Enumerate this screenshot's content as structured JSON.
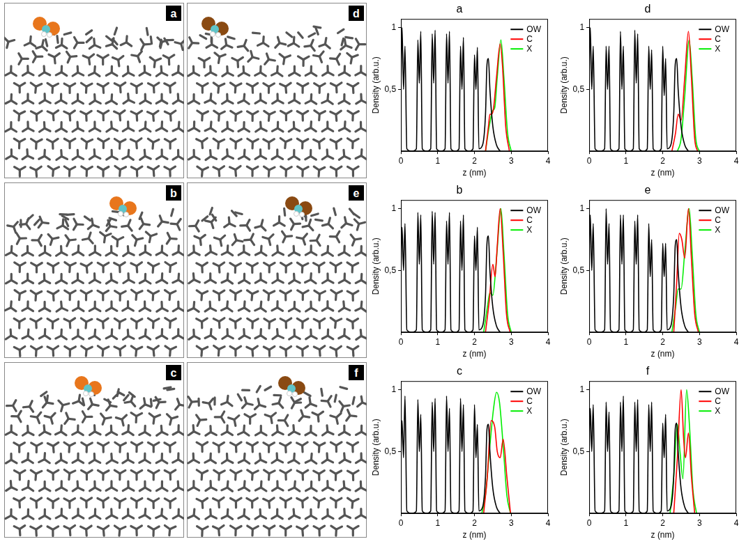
{
  "snapshots": [
    "a",
    "b",
    "c",
    "d",
    "e",
    "f"
  ],
  "chart_data": [
    {
      "type": "line",
      "title": "a",
      "x_label": "z (nm)",
      "y_label": "Density (arb.u.)",
      "xlim": [
        0,
        4
      ],
      "xticks": [
        0,
        1,
        2,
        3,
        4
      ],
      "ylim": [
        0,
        1.07
      ],
      "yticks": [
        {
          "value": 0.5,
          "label": "0,5"
        },
        1
      ],
      "grid": false,
      "legend": "upper right",
      "series": [
        {
          "name": "OW",
          "color": "#000000",
          "x": [
            0,
            0.03,
            0.07,
            0.11,
            0.16,
            0.3,
            0.42,
            0.46,
            0.5,
            0.54,
            0.58,
            0.7,
            0.81,
            0.85,
            0.89,
            0.93,
            0.97,
            1.09,
            1.2,
            1.24,
            1.28,
            1.32,
            1.36,
            1.48,
            1.58,
            1.62,
            1.66,
            1.7,
            1.74,
            1.86,
            1.96,
            2.0,
            2.04,
            2.08,
            2.12,
            2.22,
            2.3,
            2.34,
            2.38,
            2.42,
            2.5,
            2.6,
            2.7
          ],
          "values": [
            0.55,
            1.0,
            0.5,
            0.85,
            0.02,
            0,
            0.02,
            0.9,
            0.55,
            0.97,
            0.02,
            0,
            0.02,
            0.95,
            0.55,
            0.98,
            0.02,
            0,
            0.02,
            0.95,
            0.55,
            0.97,
            0.02,
            0,
            0.02,
            0.85,
            0.5,
            0.92,
            0.02,
            0,
            0.02,
            0.78,
            0.5,
            0.84,
            0.02,
            0.05,
            0.3,
            0.7,
            0.75,
            0.5,
            0.2,
            0.05,
            0
          ]
        },
        {
          "name": "C",
          "color": "#ff0000",
          "x": [
            2.3,
            2.38,
            2.42,
            2.47,
            2.52,
            2.6,
            2.7,
            2.76,
            2.85,
            2.95
          ],
          "values": [
            0,
            0.2,
            0.3,
            0.3,
            0.35,
            0.6,
            0.87,
            0.7,
            0.2,
            0
          ]
        },
        {
          "name": "X",
          "color": "#00ee00",
          "x": [
            2.3,
            2.4,
            2.5,
            2.55,
            2.62,
            2.72,
            2.8,
            2.9,
            3.0
          ],
          "values": [
            0,
            0.2,
            0.33,
            0.35,
            0.6,
            0.9,
            0.6,
            0.15,
            0
          ]
        }
      ]
    },
    {
      "type": "line",
      "title": "b",
      "x_label": "z (nm)",
      "y_label": "Density (arb.u.)",
      "xlim": [
        0,
        4
      ],
      "xticks": [
        0,
        1,
        2,
        3,
        4
      ],
      "ylim": [
        0,
        1.07
      ],
      "yticks": [
        {
          "value": 0.5,
          "label": "0,5"
        },
        1
      ],
      "grid": false,
      "legend": "upper right",
      "series": [
        {
          "name": "OW",
          "color": "#000000",
          "x": [
            0,
            0.03,
            0.07,
            0.11,
            0.16,
            0.3,
            0.42,
            0.46,
            0.5,
            0.54,
            0.58,
            0.7,
            0.81,
            0.85,
            0.89,
            0.93,
            0.97,
            1.09,
            1.2,
            1.24,
            1.28,
            1.32,
            1.36,
            1.48,
            1.58,
            1.62,
            1.66,
            1.7,
            1.74,
            1.86,
            1.96,
            2.0,
            2.04,
            2.08,
            2.12,
            2.22,
            2.3,
            2.34,
            2.38,
            2.42,
            2.5,
            2.6,
            2.7
          ],
          "values": [
            0.5,
            0.85,
            0.5,
            0.88,
            0.02,
            0,
            0.02,
            0.97,
            0.55,
            0.95,
            0.02,
            0,
            0.02,
            0.98,
            0.55,
            0.97,
            0.02,
            0,
            0.02,
            0.9,
            0.55,
            0.97,
            0.02,
            0,
            0.02,
            0.9,
            0.5,
            0.95,
            0.02,
            0,
            0.02,
            0.78,
            0.5,
            0.85,
            0.02,
            0.05,
            0.3,
            0.72,
            0.78,
            0.5,
            0.2,
            0.05,
            0
          ]
        },
        {
          "name": "C",
          "color": "#ff0000",
          "x": [
            2.3,
            2.4,
            2.5,
            2.56,
            2.62,
            2.7,
            2.78,
            2.87,
            2.97
          ],
          "values": [
            0,
            0.25,
            0.55,
            0.45,
            0.7,
            1.0,
            0.65,
            0.15,
            0
          ]
        },
        {
          "name": "X",
          "color": "#00ee00",
          "x": [
            2.25,
            2.35,
            2.42,
            2.5,
            2.6,
            2.72,
            2.8,
            2.9,
            3.0
          ],
          "values": [
            0,
            0.2,
            0.32,
            0.3,
            0.6,
            1.0,
            0.65,
            0.15,
            0
          ]
        }
      ]
    },
    {
      "type": "line",
      "title": "c",
      "x_label": "z (nm)",
      "y_label": "Density (arb.u.)",
      "xlim": [
        0,
        4
      ],
      "xticks": [
        0,
        1,
        2,
        3,
        4
      ],
      "ylim": [
        0,
        1.07
      ],
      "yticks": [
        {
          "value": 0.5,
          "label": "0,5"
        },
        1
      ],
      "grid": false,
      "legend": "upper right",
      "series": [
        {
          "name": "OW",
          "color": "#000000",
          "x": [
            0,
            0.03,
            0.07,
            0.11,
            0.16,
            0.3,
            0.42,
            0.46,
            0.5,
            0.54,
            0.58,
            0.7,
            0.81,
            0.85,
            0.89,
            0.93,
            0.97,
            1.09,
            1.2,
            1.24,
            1.28,
            1.32,
            1.36,
            1.48,
            1.58,
            1.62,
            1.66,
            1.7,
            1.74,
            1.86,
            1.96,
            2.0,
            2.04,
            2.08,
            2.12,
            2.22,
            2.3,
            2.34,
            2.38,
            2.42,
            2.5,
            2.6,
            2.7
          ],
          "values": [
            0.5,
            0.75,
            0.45,
            0.95,
            0.02,
            0,
            0.02,
            0.92,
            0.5,
            0.8,
            0.02,
            0,
            0.02,
            0.9,
            0.5,
            0.93,
            0.02,
            0,
            0.02,
            0.95,
            0.5,
            0.85,
            0.02,
            0,
            0.02,
            0.93,
            0.5,
            0.88,
            0.02,
            0,
            0.02,
            0.88,
            0.45,
            0.72,
            0.02,
            0.05,
            0.3,
            0.68,
            0.72,
            0.5,
            0.2,
            0.05,
            0
          ]
        },
        {
          "name": "C",
          "color": "#ff0000",
          "x": [
            2.25,
            2.35,
            2.45,
            2.55,
            2.62,
            2.7,
            2.78,
            2.88,
            2.98
          ],
          "values": [
            0,
            0.3,
            0.75,
            0.7,
            0.5,
            0.45,
            0.6,
            0.3,
            0
          ]
        },
        {
          "name": "X",
          "color": "#00ee00",
          "x": [
            2.2,
            2.3,
            2.42,
            2.52,
            2.6,
            2.68,
            2.78,
            2.88,
            2.98
          ],
          "values": [
            0,
            0.15,
            0.55,
            0.85,
            0.98,
            0.9,
            0.55,
            0.15,
            0
          ]
        }
      ]
    },
    {
      "type": "line",
      "title": "d",
      "x_label": "z (nm)",
      "y_label": "Density (arb.u.)",
      "xlim": [
        0,
        4
      ],
      "xticks": [
        0,
        1,
        2,
        3,
        4
      ],
      "ylim": [
        0,
        1.07
      ],
      "yticks": [
        {
          "value": 0.5,
          "label": "0,5"
        },
        1
      ],
      "grid": false,
      "legend": "upper right",
      "series": [
        {
          "name": "OW",
          "color": "#000000",
          "x": [
            0,
            0.03,
            0.07,
            0.11,
            0.16,
            0.3,
            0.42,
            0.46,
            0.5,
            0.54,
            0.58,
            0.7,
            0.81,
            0.85,
            0.89,
            0.93,
            0.97,
            1.09,
            1.2,
            1.24,
            1.28,
            1.32,
            1.36,
            1.48,
            1.58,
            1.62,
            1.66,
            1.7,
            1.74,
            1.86,
            1.96,
            2.0,
            2.04,
            2.08,
            2.12,
            2.22,
            2.3,
            2.34,
            2.38,
            2.42,
            2.5,
            2.6,
            2.7
          ],
          "values": [
            0.6,
            1.0,
            0.5,
            0.85,
            0.02,
            0,
            0.02,
            0.85,
            0.5,
            0.85,
            0.02,
            0,
            0.02,
            0.97,
            0.5,
            0.85,
            0.02,
            0,
            0.02,
            0.98,
            0.55,
            0.95,
            0.02,
            0,
            0.02,
            0.85,
            0.5,
            0.82,
            0.02,
            0,
            0.02,
            0.85,
            0.45,
            0.75,
            0.02,
            0.05,
            0.3,
            0.7,
            0.75,
            0.5,
            0.2,
            0.05,
            0
          ]
        },
        {
          "name": "C",
          "color": "#ff0000",
          "x": [
            2.25,
            2.35,
            2.42,
            2.5,
            2.6,
            2.7,
            2.78,
            2.87,
            2.95
          ],
          "values": [
            0,
            0.15,
            0.3,
            0.25,
            0.6,
            0.97,
            0.6,
            0.1,
            0
          ]
        },
        {
          "name": "X",
          "color": "#00ee00",
          "x": [
            2.4,
            2.5,
            2.6,
            2.72,
            2.8,
            2.9,
            3.0
          ],
          "values": [
            0,
            0.1,
            0.45,
            0.9,
            0.6,
            0.1,
            0
          ]
        }
      ]
    },
    {
      "type": "line",
      "title": "e",
      "x_label": "z (nm)",
      "y_label": "Density (arb.u.)",
      "xlim": [
        0,
        4
      ],
      "xticks": [
        0,
        1,
        2,
        3,
        4
      ],
      "ylim": [
        0,
        1.07
      ],
      "yticks": [
        {
          "value": 0.5,
          "label": "0,5"
        },
        1
      ],
      "grid": false,
      "legend": "upper right",
      "series": [
        {
          "name": "OW",
          "color": "#000000",
          "x": [
            0,
            0.03,
            0.07,
            0.11,
            0.16,
            0.3,
            0.42,
            0.46,
            0.5,
            0.54,
            0.58,
            0.7,
            0.81,
            0.85,
            0.89,
            0.93,
            0.97,
            1.09,
            1.2,
            1.24,
            1.28,
            1.32,
            1.36,
            1.48,
            1.58,
            1.62,
            1.66,
            1.7,
            1.74,
            1.86,
            1.96,
            2.0,
            2.04,
            2.08,
            2.12,
            2.22,
            2.3,
            2.34,
            2.38,
            2.42,
            2.5,
            2.6,
            2.7
          ],
          "values": [
            0.55,
            0.95,
            0.5,
            0.88,
            0.02,
            0,
            0.02,
            1.0,
            0.55,
            0.88,
            0.02,
            0,
            0.02,
            0.95,
            0.55,
            0.95,
            0.02,
            0,
            0.02,
            0.9,
            0.55,
            0.95,
            0.02,
            0,
            0.02,
            0.88,
            0.45,
            0.75,
            0.02,
            0,
            0.02,
            0.72,
            0.45,
            0.72,
            0.02,
            0.05,
            0.3,
            0.7,
            0.75,
            0.5,
            0.2,
            0.05,
            0
          ]
        },
        {
          "name": "C",
          "color": "#ff0000",
          "x": [
            2.3,
            2.38,
            2.45,
            2.52,
            2.6,
            2.7,
            2.78,
            2.87,
            2.97
          ],
          "values": [
            0,
            0.4,
            0.8,
            0.75,
            0.6,
            1.0,
            0.6,
            0.15,
            0
          ]
        },
        {
          "name": "X",
          "color": "#00ee00",
          "x": [
            2.25,
            2.35,
            2.42,
            2.5,
            2.6,
            2.72,
            2.8,
            2.9,
            3.0
          ],
          "values": [
            0,
            0.2,
            0.35,
            0.35,
            0.65,
            1.0,
            0.65,
            0.15,
            0
          ]
        }
      ]
    },
    {
      "type": "line",
      "title": "f",
      "x_label": "z (nm)",
      "y_label": "Density (arb.u.)",
      "xlim": [
        0,
        4
      ],
      "xticks": [
        0,
        1,
        2,
        3,
        4
      ],
      "ylim": [
        0,
        1.07
      ],
      "yticks": [
        {
          "value": 0.5,
          "label": "0,5"
        },
        1
      ],
      "grid": false,
      "legend": "upper right",
      "series": [
        {
          "name": "OW",
          "color": "#000000",
          "x": [
            0,
            0.03,
            0.07,
            0.11,
            0.16,
            0.3,
            0.42,
            0.46,
            0.5,
            0.54,
            0.58,
            0.7,
            0.81,
            0.85,
            0.89,
            0.93,
            0.97,
            1.09,
            1.2,
            1.24,
            1.28,
            1.32,
            1.36,
            1.48,
            1.58,
            1.62,
            1.66,
            1.7,
            1.74,
            1.86,
            1.96,
            2.0,
            2.04,
            2.08,
            2.12,
            2.22,
            2.3,
            2.34,
            2.38,
            2.42,
            2.5,
            2.6,
            2.7
          ],
          "values": [
            0.5,
            0.85,
            0.5,
            0.88,
            0.02,
            0,
            0.02,
            0.9,
            0.5,
            0.82,
            0.02,
            0,
            0.02,
            0.9,
            0.5,
            0.95,
            0.02,
            0,
            0.02,
            0.9,
            0.5,
            0.92,
            0.02,
            0,
            0.02,
            0.88,
            0.5,
            0.9,
            0.02,
            0,
            0.02,
            0.73,
            0.45,
            0.8,
            0.02,
            0.05,
            0.3,
            0.68,
            0.73,
            0.5,
            0.2,
            0.05,
            0
          ]
        },
        {
          "name": "C",
          "color": "#ff0000",
          "x": [
            2.3,
            2.4,
            2.5,
            2.57,
            2.62,
            2.7,
            2.78,
            2.87
          ],
          "values": [
            0,
            0.45,
            1.0,
            0.6,
            0.45,
            0.65,
            0.3,
            0
          ]
        },
        {
          "name": "X",
          "color": "#00ee00",
          "x": [
            2.2,
            2.3,
            2.4,
            2.47,
            2.55,
            2.65,
            2.73,
            2.82,
            2.92
          ],
          "values": [
            0,
            0.3,
            0.72,
            0.5,
            0.28,
            1.0,
            0.7,
            0.2,
            0
          ]
        }
      ]
    }
  ]
}
